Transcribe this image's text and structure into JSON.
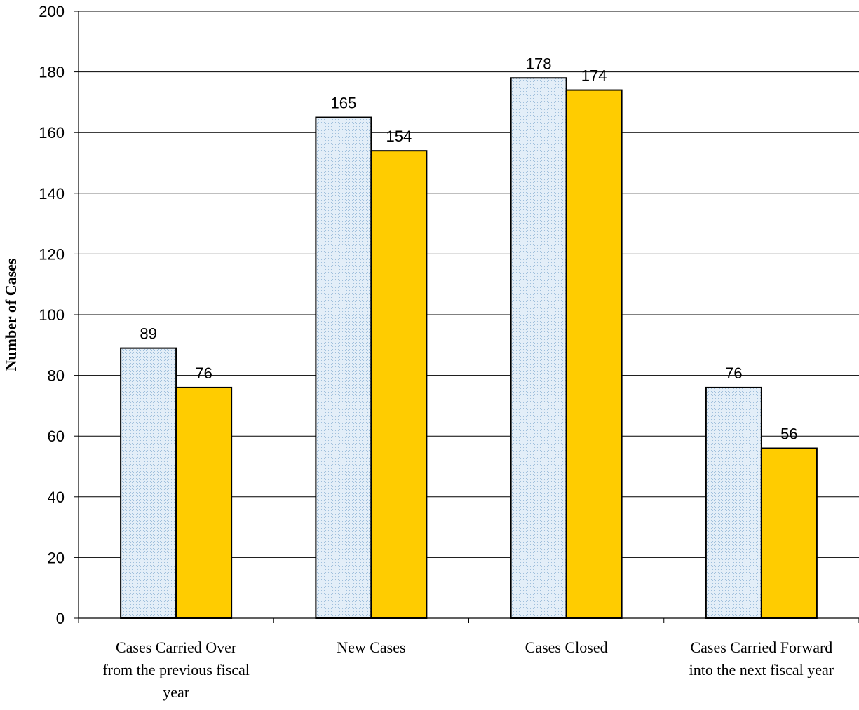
{
  "chart_data": {
    "type": "bar",
    "title": "",
    "xlabel": "",
    "ylabel": "Number of Cases",
    "ylim": [
      0,
      200
    ],
    "yticks": [
      0,
      20,
      40,
      60,
      80,
      100,
      120,
      140,
      160,
      180,
      200
    ],
    "grid": true,
    "legend": "none",
    "categories": [
      [
        "Cases Carried Over",
        "from the previous fiscal",
        "year"
      ],
      [
        "New Cases"
      ],
      [
        "Cases Closed"
      ],
      [
        "Cases Carried Forward",
        "into the next fiscal year"
      ]
    ],
    "series": [
      {
        "values": [
          89,
          165,
          178,
          76
        ],
        "color": "#d6e6f5",
        "pattern": "dotted"
      },
      {
        "values": [
          76,
          154,
          174,
          56
        ],
        "color": "#ffcc00"
      }
    ]
  }
}
